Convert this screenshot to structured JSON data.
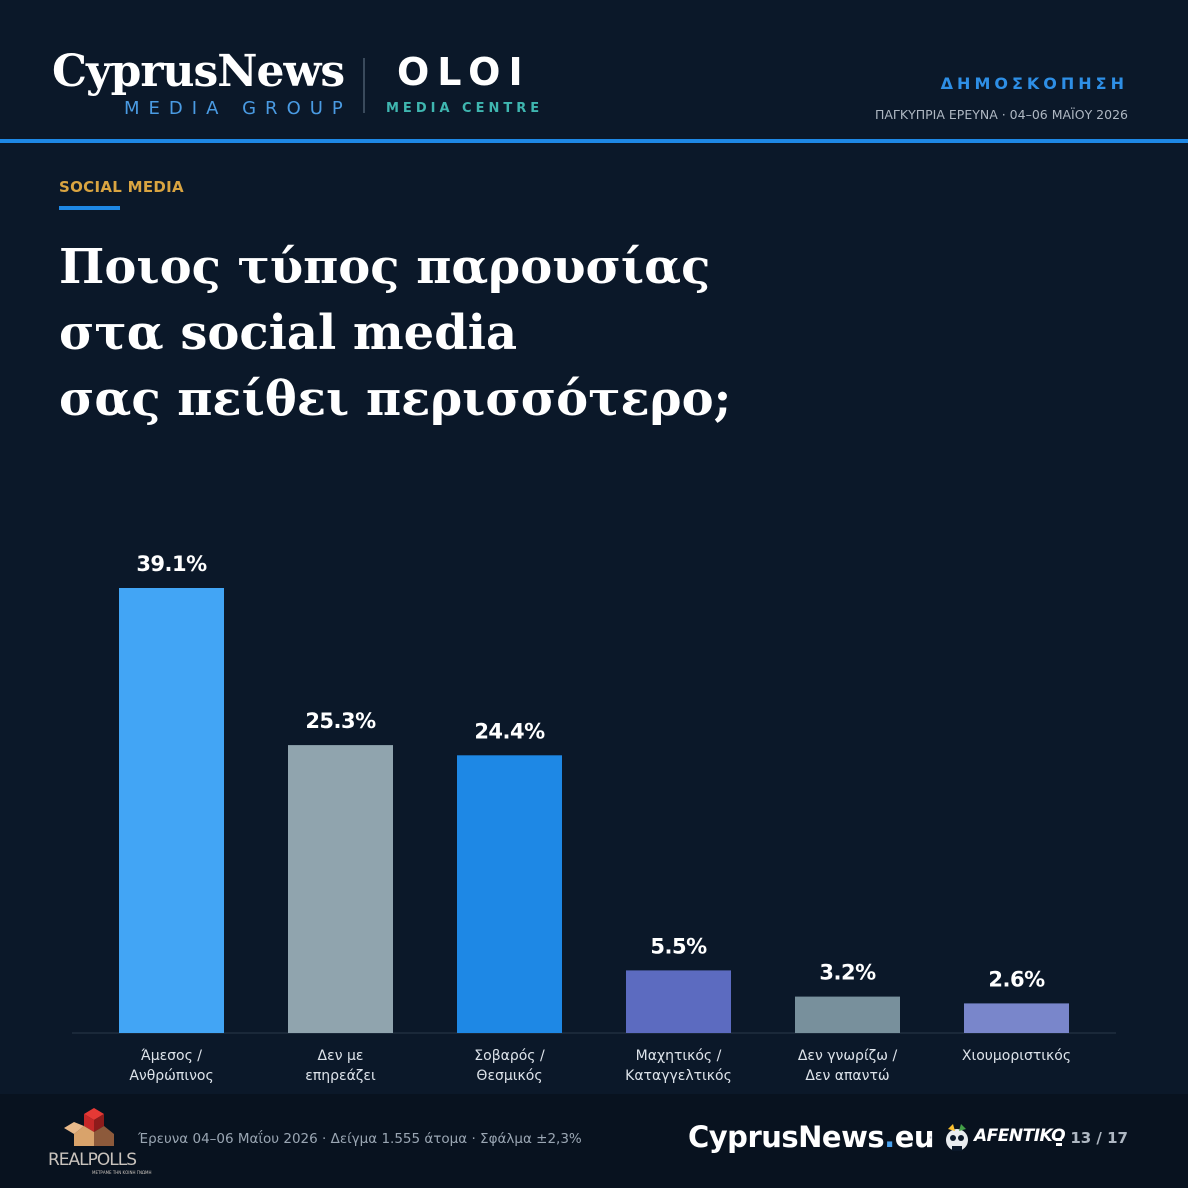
{
  "header": {
    "brand_name": "CyprusNews",
    "brand_sub": "MEDIA GROUP",
    "partner_name": "OLOI",
    "partner_sub": "MEDIA CENTRE",
    "kicker": "ΔΗΜΟΣΚΟΠΗΣΗ",
    "survey_date": "ΠΑΓΚΥΠΡΙΑ ΕΡΕΥΝΑ · 04–06 ΜΑΪΟΥ 2026"
  },
  "section_label": "SOCIAL MEDIA",
  "chart_data": {
    "type": "bar",
    "title": "Ποιος τύπος παρουσίας\nστα social media\nσας πείθει περισσότερο;",
    "categories": [
      [
        "Άμεσος /",
        "Ανθρώπινος"
      ],
      [
        "Δεν με",
        "επηρεάζει"
      ],
      [
        "Σοβαρός /",
        "Θεσμικός"
      ],
      [
        "Μαχητικός /",
        "Καταγγελτικός"
      ],
      [
        "Δεν γνωρίζω /",
        "Δεν απαντώ"
      ],
      [
        "Χιουμοριστικός"
      ]
    ],
    "values": [
      39.1,
      25.3,
      24.4,
      5.5,
      3.2,
      2.6
    ],
    "value_labels": [
      "39.1%",
      "25.3%",
      "24.4%",
      "5.5%",
      "3.2%",
      "2.6%"
    ],
    "colors": [
      "#42a5f5",
      "#90a4ae",
      "#1e88e5",
      "#5c6bc0",
      "#78909c",
      "#7986cb"
    ],
    "ylim": [
      0,
      39.1
    ],
    "grid": false,
    "legend": "none"
  },
  "footer": {
    "pollster": "REALPOLLS",
    "pollster_tag": "ΜΕΤΡΑΜΕ ΤΗΝ ΚΟΙΝΗ ΓΝΩΜΗ",
    "meta": "Έρευνα 04–06 Μαΐου 2026  ·  Δείγμα 1.555 άτομα  ·  Σφάλμα ±2,3%",
    "site_name": "CyprusNews",
    "site_dot": ".",
    "site_tld": "eu",
    "separator": "·",
    "partner2": "AFENTIKO",
    "page": "13 / 17"
  },
  "logo_colors": {
    "realpolls_red": "#c62828",
    "realpolls_brown": "#8d5a3b",
    "realpolls_tan": "#d9a36b"
  }
}
